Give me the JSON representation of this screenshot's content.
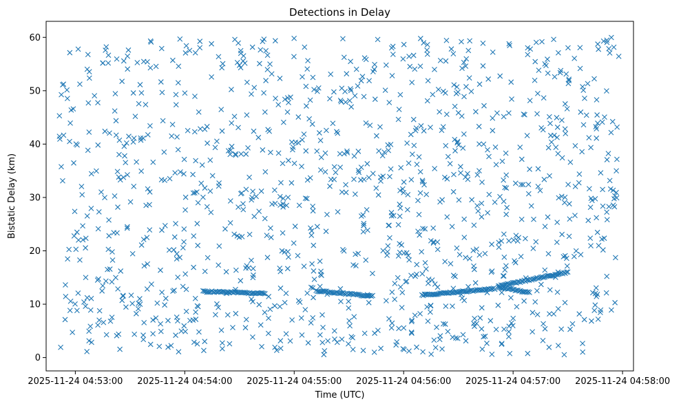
{
  "chart_data": {
    "type": "scatter",
    "title": "Detections in Delay",
    "xlabel": "Time (UTC)",
    "ylabel": "Bistatic Delay (km)",
    "marker": "x",
    "color": "#1f77b4",
    "grid": false,
    "legend": "none",
    "xlim": [
      "2025-11-24 04:52:44",
      "2025-11-24 04:58:06"
    ],
    "ylim": [
      -2.5,
      63
    ],
    "x_ticks": [
      "2025-11-24 04:53:00",
      "2025-11-24 04:54:00",
      "2025-11-24 04:55:00",
      "2025-11-24 04:56:00",
      "2025-11-24 04:57:00",
      "2025-11-24 04:58:00"
    ],
    "y_ticks": [
      0,
      10,
      20,
      30,
      40,
      50,
      60
    ],
    "time_range": [
      "2025-11-24 04:52:51",
      "2025-11-24 04:57:58"
    ],
    "delay_range": [
      0.5,
      60
    ],
    "noise_detection_count": 1200,
    "tracks": [
      {
        "time_start": "2025-11-24 04:54:10",
        "time_end": "2025-11-24 04:54:44",
        "delay_start": 12.4,
        "delay_end": 12.0
      },
      {
        "time_start": "2025-11-24 04:55:12",
        "time_end": "2025-11-24 04:55:43",
        "delay_start": 12.5,
        "delay_end": 11.5
      },
      {
        "time_start": "2025-11-24 04:56:10",
        "time_end": "2025-11-24 04:56:50",
        "delay_start": 11.7,
        "delay_end": 12.9
      },
      {
        "time_start": "2025-11-24 04:56:52",
        "time_end": "2025-11-24 04:57:09",
        "delay_start": 13.2,
        "delay_end": 12.2
      },
      {
        "time_start": "2025-11-24 04:56:52",
        "time_end": "2025-11-24 04:57:30",
        "delay_start": 13.4,
        "delay_end": 16.0
      }
    ]
  }
}
